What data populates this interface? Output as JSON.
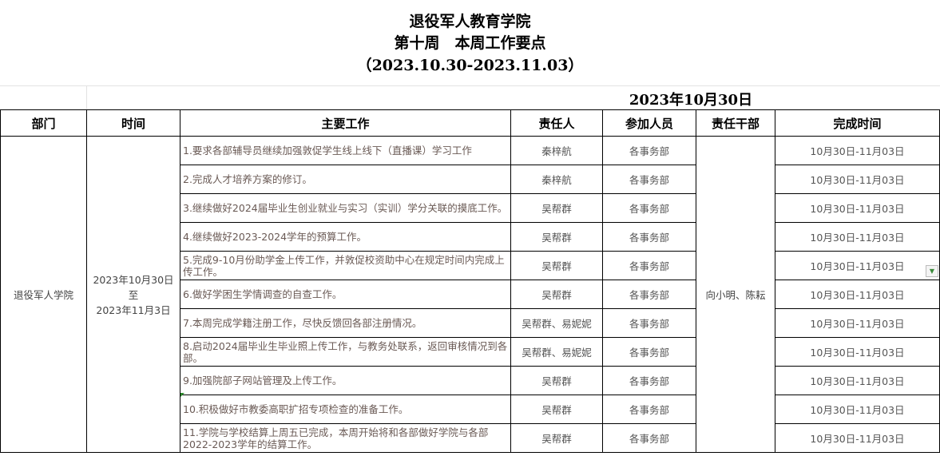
{
  "header": {
    "org": "退役军人教育学院",
    "week": "第十周　本周工作要点",
    "range": "（2023.10.30-2023.11.03）",
    "date": "2023年10月30日"
  },
  "columns": [
    "部门",
    "时间",
    "主要工作",
    "责任人",
    "参加人员",
    "责任干部",
    "完成时间"
  ],
  "department": "退役军人学院",
  "time": {
    "line1": "2023年10月30日",
    "line2": "至",
    "line3": "2023年11月3日"
  },
  "cadre": "向小明、陈耘",
  "rows": [
    {
      "task": "1.要求各部辅导员继续加强敦促学生线上线下（直播课）学习工作",
      "owner": "秦梓航",
      "participants": "各事务部",
      "deadline": "10月30日-11月03日"
    },
    {
      "task": "2.完成人才培养方案的修订。",
      "owner": "秦梓航",
      "participants": "各事务部",
      "deadline": "10月30日-11月03日"
    },
    {
      "task": "3.继续做好2024届毕业生创业就业与实习（实训）学分关联的摸底工作。",
      "owner": "吴帮群",
      "participants": "各事务部",
      "deadline": "10月30日-11月03日"
    },
    {
      "task": "4.继续做好2023-2024学年的预算工作。",
      "owner": "吴帮群",
      "participants": "各事务部",
      "deadline": "10月30日-11月03日"
    },
    {
      "task": "5.完成9-10月份助学金上传工作，并敦促校资助中心在规定时间内完成上传工作。",
      "owner": "吴帮群",
      "participants": "各事务部",
      "deadline": "10月30日-11月03日"
    },
    {
      "task": "6.做好学困生学情调查的自查工作。",
      "owner": "吴帮群",
      "participants": "各事务部",
      "deadline": "10月30日-11月03日"
    },
    {
      "task": "7.本周完成学籍注册工作，尽快反馈回各部注册情况。",
      "owner": "吴帮群、易妮妮",
      "participants": "各事务部",
      "deadline": "10月30日-11月03日"
    },
    {
      "task": "8.启动2024届毕业生毕业照上传工作，与教务处联系，返回审核情况到各部。",
      "owner": "吴帮群、易妮妮",
      "participants": "各事务部",
      "deadline": "10月30日-11月03日"
    },
    {
      "task": "9.加强院部子网站管理及上传工作。",
      "owner": "吴帮群",
      "participants": "各事务部",
      "deadline": "10月30日-11月03日"
    },
    {
      "task": "10.积极做好市教委高职扩招专项检查的准备工作。",
      "owner": "吴帮群",
      "participants": "各事务部",
      "deadline": "10月30日-11月03日"
    },
    {
      "task": "11.学院与学校结算上周五已完成，本周开始将和各部做好学院与各部2022-2023学年的结算工作。",
      "owner": "吴帮群",
      "participants": "各事务部",
      "deadline": "10月30日-11月03日"
    }
  ]
}
